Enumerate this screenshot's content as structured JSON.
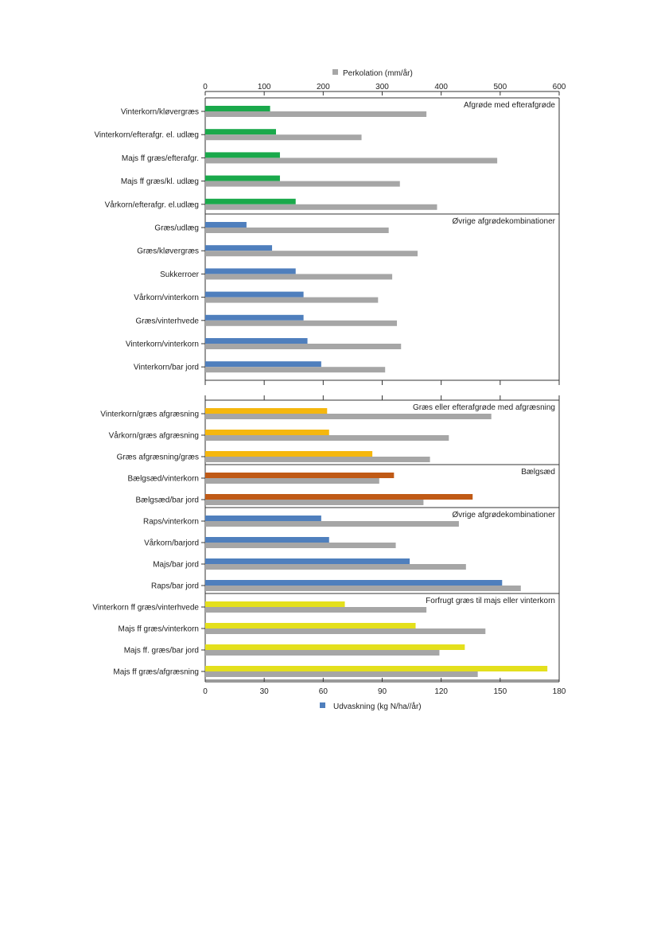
{
  "colors": {
    "perc": "#a6a6a6",
    "green": "#1aa94b",
    "blue": "#4f7fbd",
    "orange": "#f5b70e",
    "brown": "#c05a16",
    "yellow": "#e4e01c",
    "frame": "#333333"
  },
  "chart_data": {
    "type": "bar",
    "orientation": "horizontal",
    "legend": {
      "top_label": "Perkolation (mm/år)",
      "bottom_label": "Udvaskning (kg N/ha//år)"
    },
    "top_axis": {
      "label": "Perkolation (mm/år)",
      "range": [
        0,
        600
      ],
      "ticks": [
        "0",
        "100",
        "200",
        "300",
        "400",
        "500",
        "600"
      ]
    },
    "bottom_axis": {
      "label": "Udvaskning (kg N/ha//år)",
      "range": [
        0,
        180
      ],
      "ticks": [
        "0",
        "30",
        "60",
        "90",
        "120",
        "150",
        "180"
      ]
    },
    "panels": [
      {
        "groups": [
          {
            "title": "Afgrøde med efterafgrøde",
            "color_key": "green",
            "rows": [
              {
                "label": "Vinterkorn/kløvergræs",
                "udvaskning": 33,
                "perkolation": 375
              },
              {
                "label": "Vinterkorn/efterafgr. el. udlæg",
                "udvaskning": 36,
                "perkolation": 265
              },
              {
                "label": "Majs ff græs/efterafgr.",
                "udvaskning": 38,
                "perkolation": 495
              },
              {
                "label": "Majs ff græs/kl. udlæg",
                "udvaskning": 38,
                "perkolation": 330
              },
              {
                "label": "Vårkorn/efterafgr. el.udlæg",
                "udvaskning": 46,
                "perkolation": 393
              }
            ]
          },
          {
            "title": "Øvrige afgrødekombinationer",
            "color_key": "blue",
            "rows": [
              {
                "label": "Græs/udlæg",
                "udvaskning": 21,
                "perkolation": 311
              },
              {
                "label": "Græs/kløvergræs",
                "udvaskning": 34,
                "perkolation": 360
              },
              {
                "label": "Sukkerroer",
                "udvaskning": 46,
                "perkolation": 317
              },
              {
                "label": "Vårkorn/vinterkorn",
                "udvaskning": 50,
                "perkolation": 293
              },
              {
                "label": "Græs/vinterhvede",
                "udvaskning": 50,
                "perkolation": 325
              },
              {
                "label": "Vinterkorn/vinterkorn",
                "udvaskning": 52,
                "perkolation": 332
              },
              {
                "label": "Vinterkorn/bar jord",
                "udvaskning": 59,
                "perkolation": 305
              }
            ]
          }
        ]
      },
      {
        "groups": [
          {
            "title": "Græs eller efterafgrøde med afgræsning",
            "color_key": "orange",
            "rows": [
              {
                "label": "Vinterkorn/græs afgræsning",
                "udvaskning": 62,
                "perkolation": 485
              },
              {
                "label": "Vårkorn/græs afgræsning",
                "udvaskning": 63,
                "perkolation": 413
              },
              {
                "label": "Græs afgræsning/græs",
                "udvaskning": 85,
                "perkolation": 381
              }
            ]
          },
          {
            "title": "Bælgsæd",
            "color_key": "brown",
            "rows": [
              {
                "label": "Bælgsæd/vinterkorn",
                "udvaskning": 96,
                "perkolation": 295
              },
              {
                "label": "Bælgsæd/bar jord",
                "udvaskning": 136,
                "perkolation": 370
              }
            ]
          },
          {
            "title": "Øvrige afgrødekombinationer",
            "color_key": "blue",
            "rows": [
              {
                "label": "Raps/vinterkorn",
                "udvaskning": 59,
                "perkolation": 430
              },
              {
                "label": "Vårkorn/barjord",
                "udvaskning": 63,
                "perkolation": 323
              },
              {
                "label": "Majs/bar jord",
                "udvaskning": 104,
                "perkolation": 442
              },
              {
                "label": "Raps/bar jord",
                "udvaskning": 151,
                "perkolation": 535
              }
            ]
          },
          {
            "title": "Forfrugt græs til majs eller vinterkorn",
            "color_key": "yellow",
            "rows": [
              {
                "label": "Vinterkorn ff græs/vinterhvede",
                "udvaskning": 71,
                "perkolation": 375
              },
              {
                "label": "Majs ff græs/vinterkorn",
                "udvaskning": 107,
                "perkolation": 475
              },
              {
                "label": "Majs ff. græs/bar jord",
                "udvaskning": 132,
                "perkolation": 397
              },
              {
                "label": "Majs ff græs/afgræsning",
                "udvaskning": 174,
                "perkolation": 462
              }
            ]
          }
        ]
      }
    ]
  }
}
